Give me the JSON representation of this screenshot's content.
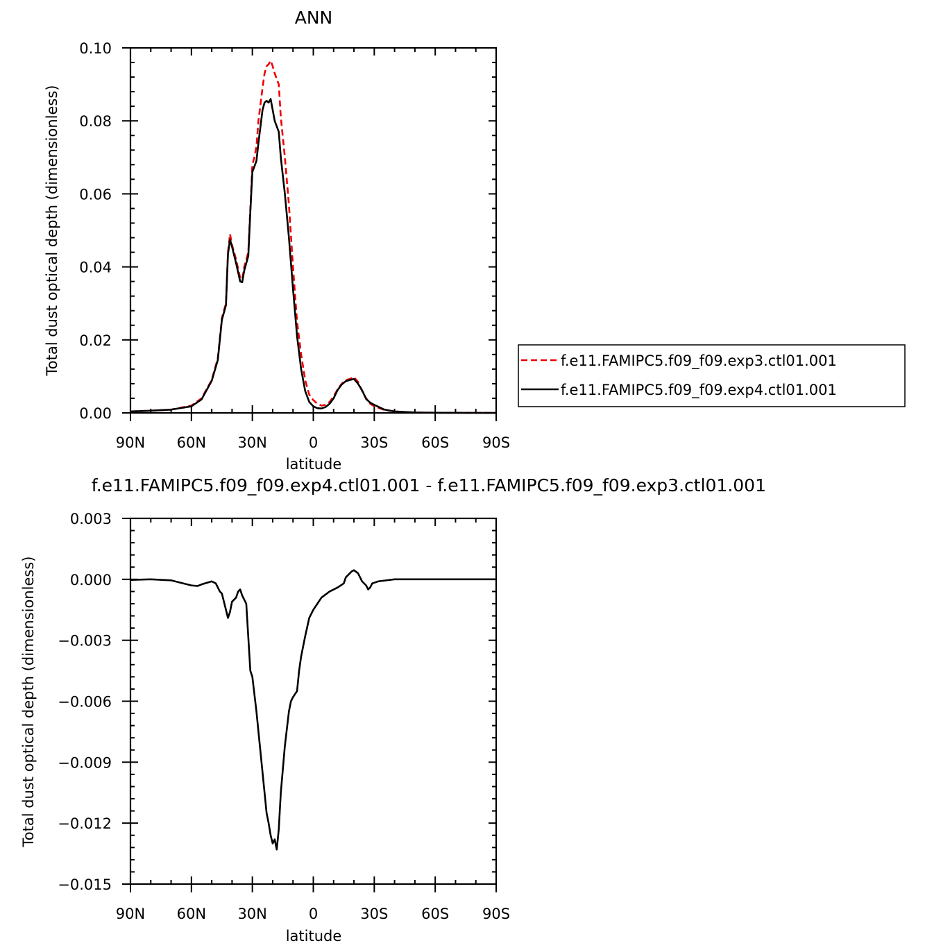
{
  "colors": {
    "exp3": "#ee0000",
    "exp4": "#000000"
  },
  "chart_data": [
    {
      "type": "line",
      "title": "ANN",
      "xlabel": "latitude",
      "ylabel": "Total dust optical depth (dimensionless)",
      "xlim": [
        90,
        -90
      ],
      "ylim": [
        0,
        0.1
      ],
      "xticks": [
        90,
        60,
        30,
        0,
        -30,
        -60,
        -90
      ],
      "xtick_labels": [
        "90N",
        "60N",
        "30N",
        "0",
        "30S",
        "60S",
        "90S"
      ],
      "yticks": [
        0,
        0.02,
        0.04,
        0.06,
        0.08,
        0.1
      ],
      "ytick_labels": [
        "0.00",
        "0.02",
        "0.04",
        "0.06",
        "0.08",
        "0.10"
      ],
      "legend_position": "right",
      "grid": false,
      "series": [
        {
          "name": "f.e11.FAMIPC5.f09_f09.exp3.ctl01.001",
          "style": "dashed",
          "color": "#ee0000",
          "points": [
            [
              90,
              0.0004
            ],
            [
              80,
              0.0006
            ],
            [
              70,
              0.0009
            ],
            [
              60,
              0.002
            ],
            [
              55,
              0.004
            ],
            [
              50,
              0.009
            ],
            [
              47,
              0.015
            ],
            [
              45,
              0.026
            ],
            [
              44,
              0.028
            ],
            [
              43,
              0.03
            ],
            [
              42,
              0.044
            ],
            [
              41,
              0.049
            ],
            [
              40,
              0.046
            ],
            [
              38,
              0.042
            ],
            [
              36,
              0.037
            ],
            [
              35,
              0.0365
            ],
            [
              34,
              0.04
            ],
            [
              32,
              0.044
            ],
            [
              31,
              0.056
            ],
            [
              30,
              0.068
            ],
            [
              29,
              0.07
            ],
            [
              28,
              0.073
            ],
            [
              27,
              0.08
            ],
            [
              25,
              0.089
            ],
            [
              24,
              0.093
            ],
            [
              23,
              0.095
            ],
            [
              22,
              0.0955
            ],
            [
              21,
              0.0965
            ],
            [
              20,
              0.095
            ],
            [
              19,
              0.093
            ],
            [
              17,
              0.09
            ],
            [
              16,
              0.081
            ],
            [
              14,
              0.07
            ],
            [
              12,
              0.057
            ],
            [
              10,
              0.04
            ],
            [
              8,
              0.025
            ],
            [
              6,
              0.016
            ],
            [
              4,
              0.009
            ],
            [
              2,
              0.005
            ],
            [
              0,
              0.0035
            ],
            [
              -2,
              0.0025
            ],
            [
              -4,
              0.002
            ],
            [
              -6,
              0.0022
            ],
            [
              -8,
              0.003
            ],
            [
              -10,
              0.0045
            ],
            [
              -12,
              0.0065
            ],
            [
              -14,
              0.008
            ],
            [
              -16,
              0.009
            ],
            [
              -18,
              0.0093
            ],
            [
              -20,
              0.0098
            ],
            [
              -22,
              0.0085
            ],
            [
              -24,
              0.006
            ],
            [
              -26,
              0.004
            ],
            [
              -28,
              0.0025
            ],
            [
              -30,
              0.0018
            ],
            [
              -35,
              0.0008
            ],
            [
              -40,
              0.0004
            ],
            [
              -50,
              0.0001
            ],
            [
              -60,
              5e-05
            ],
            [
              -90,
              0.0
            ]
          ]
        },
        {
          "name": "f.e11.FAMIPC5.f09_f09.exp4.ctl01.001",
          "style": "solid",
          "color": "#000000",
          "points": [
            [
              90,
              0.0004
            ],
            [
              80,
              0.0006
            ],
            [
              70,
              0.0009
            ],
            [
              60,
              0.0018
            ],
            [
              55,
              0.0037
            ],
            [
              50,
              0.0088
            ],
            [
              47,
              0.0145
            ],
            [
              45,
              0.0255
            ],
            [
              44,
              0.0275
            ],
            [
              43,
              0.0295
            ],
            [
              42,
              0.0435
            ],
            [
              41,
              0.0475
            ],
            [
              40,
              0.0455
            ],
            [
              38,
              0.041
            ],
            [
              36,
              0.036
            ],
            [
              35,
              0.0358
            ],
            [
              34,
              0.039
            ],
            [
              32,
              0.043
            ],
            [
              31,
              0.055
            ],
            [
              30,
              0.066
            ],
            [
              29,
              0.0675
            ],
            [
              28,
              0.069
            ],
            [
              27,
              0.074
            ],
            [
              25,
              0.083
            ],
            [
              24,
              0.085
            ],
            [
              23,
              0.0855
            ],
            [
              22,
              0.085
            ],
            [
              21,
              0.086
            ],
            [
              20,
              0.083
            ],
            [
              19,
              0.08
            ],
            [
              17,
              0.077
            ],
            [
              16,
              0.07
            ],
            [
              14,
              0.06
            ],
            [
              12,
              0.048
            ],
            [
              10,
              0.034
            ],
            [
              8,
              0.021
            ],
            [
              6,
              0.012
            ],
            [
              4,
              0.006
            ],
            [
              2,
              0.003
            ],
            [
              0,
              0.0018
            ],
            [
              -2,
              0.0013
            ],
            [
              -4,
              0.0012
            ],
            [
              -6,
              0.0016
            ],
            [
              -8,
              0.0025
            ],
            [
              -10,
              0.004
            ],
            [
              -12,
              0.0063
            ],
            [
              -14,
              0.0078
            ],
            [
              -16,
              0.0087
            ],
            [
              -18,
              0.009
            ],
            [
              -20,
              0.0093
            ],
            [
              -22,
              0.008
            ],
            [
              -24,
              0.0062
            ],
            [
              -26,
              0.0038
            ],
            [
              -28,
              0.0028
            ],
            [
              -30,
              0.0022
            ],
            [
              -35,
              0.0009
            ],
            [
              -40,
              0.0004
            ],
            [
              -50,
              0.0001
            ],
            [
              -60,
              5e-05
            ],
            [
              -90,
              0.0
            ]
          ]
        }
      ]
    },
    {
      "type": "line",
      "title": "f.e11.FAMIPC5.f09_f09.exp4.ctl01.001 - f.e11.FAMIPC5.f09_f09.exp3.ctl01.001",
      "xlabel": "latitude",
      "ylabel": "Total dust optical depth (dimensionless)",
      "xlim": [
        90,
        -90
      ],
      "ylim": [
        -0.015,
        0.003
      ],
      "xticks": [
        90,
        60,
        30,
        0,
        -30,
        -60,
        -90
      ],
      "xtick_labels": [
        "90N",
        "60N",
        "30N",
        "0",
        "30S",
        "60S",
        "90S"
      ],
      "yticks": [
        0.003,
        0,
        -0.003,
        -0.006,
        -0.009,
        -0.012,
        -0.015
      ],
      "ytick_labels": [
        "0.003",
        "0.000",
        "−0.003",
        "−0.006",
        "−0.009",
        "−0.012",
        "−0.015"
      ],
      "grid": false,
      "series": [
        {
          "style": "solid",
          "color": "#000000",
          "points": [
            [
              90,
              -3e-05
            ],
            [
              80,
              0.0
            ],
            [
              70,
              -5e-05
            ],
            [
              60,
              -0.0003
            ],
            [
              57,
              -0.00033
            ],
            [
              55,
              -0.00025
            ],
            [
              50,
              -0.0001
            ],
            [
              48,
              -0.0002
            ],
            [
              46,
              -0.0006
            ],
            [
              45,
              -0.0007
            ],
            [
              44,
              -0.0011
            ],
            [
              43,
              -0.0015
            ],
            [
              42,
              -0.0019
            ],
            [
              41,
              -0.0016
            ],
            [
              40,
              -0.0011
            ],
            [
              38,
              -0.0009
            ],
            [
              37,
              -0.0006
            ],
            [
              36,
              -0.0005
            ],
            [
              35,
              -0.0008
            ],
            [
              33,
              -0.0012
            ],
            [
              31,
              -0.0045
            ],
            [
              30,
              -0.0048
            ],
            [
              28,
              -0.0065
            ],
            [
              26,
              -0.0085
            ],
            [
              25,
              -0.0095
            ],
            [
              24,
              -0.0105
            ],
            [
              23,
              -0.0115
            ],
            [
              22,
              -0.012
            ],
            [
              21,
              -0.0126
            ],
            [
              20,
              -0.013
            ],
            [
              19,
              -0.0128
            ],
            [
              18,
              -0.0133
            ],
            [
              17,
              -0.0123
            ],
            [
              16,
              -0.0105
            ],
            [
              14,
              -0.0082
            ],
            [
              12,
              -0.0065
            ],
            [
              11,
              -0.006
            ],
            [
              10,
              -0.0058
            ],
            [
              8,
              -0.0055
            ],
            [
              7,
              -0.0045
            ],
            [
              6,
              -0.0038
            ],
            [
              4,
              -0.0028
            ],
            [
              2,
              -0.0019
            ],
            [
              0,
              -0.0015
            ],
            [
              -2,
              -0.0012
            ],
            [
              -4,
              -0.0009
            ],
            [
              -8,
              -0.0006
            ],
            [
              -12,
              -0.0004
            ],
            [
              -15,
              -0.0002
            ],
            [
              -16,
              0.0001
            ],
            [
              -18,
              0.0003
            ],
            [
              -19,
              0.0004
            ],
            [
              -20,
              0.00045
            ],
            [
              -22,
              0.0003
            ],
            [
              -24,
              -0.0001
            ],
            [
              -26,
              -0.0003
            ],
            [
              -27,
              -0.0005
            ],
            [
              -28,
              -0.0004
            ],
            [
              -29,
              -0.0002
            ],
            [
              -32,
              -0.0001
            ],
            [
              -40,
              0.0
            ],
            [
              -60,
              0.0
            ],
            [
              -90,
              0.0
            ]
          ]
        }
      ]
    }
  ]
}
